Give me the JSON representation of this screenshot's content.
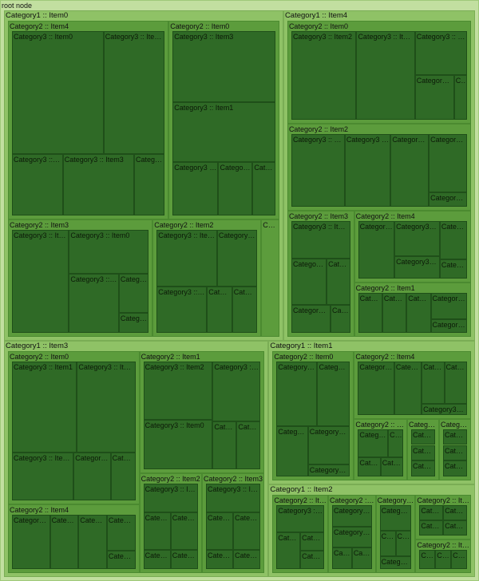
{
  "chart_data": {
    "type": "treemap",
    "title": "",
    "root": {
      "label": "root node",
      "children": [
        {
          "label": "Category1 :: Item0",
          "children": [
            {
              "label": "Category2 :: Item4",
              "children": [
                {
                  "label": "Category3 :: Item0",
                  "value": 18
                },
                {
                  "label": "Category3 :: Item1",
                  "value": 12
                },
                {
                  "label": "Category3 :: Item2",
                  "value": 5
                },
                {
                  "label": "Category3 :: Item3",
                  "value": 7
                },
                {
                  "label": "Category3 :: Item2",
                  "value": 3
                }
              ]
            },
            {
              "label": "Category2 :: Item0",
              "children": [
                {
                  "label": "Category3 :: Item3",
                  "value": 12
                },
                {
                  "label": "Category3 :: Item1",
                  "value": 10
                },
                {
                  "label": "Category3 :: Item4",
                  "value": 4
                },
                {
                  "label": "Category3 :: Item0",
                  "value": 3
                },
                {
                  "label": "Category3 :: Item2",
                  "value": 2
                }
              ]
            },
            {
              "label": "Category2 :: Item3",
              "children": [
                {
                  "label": "Category3 :: Item1",
                  "value": 10
                },
                {
                  "label": "Category3 :: Item0",
                  "value": 6
                },
                {
                  "label": "Category3 :: Item4",
                  "value": 5
                },
                {
                  "label": "Category3 :: Item2",
                  "value": 2
                },
                {
                  "label": "Category3 :: Item3",
                  "value": 1
                }
              ]
            },
            {
              "label": "Category2 :: Item2",
              "children": [
                {
                  "label": "Category3 :: Item2",
                  "value": 6
                },
                {
                  "label": "Category3 :: Item4",
                  "value": 4
                },
                {
                  "label": "Category3 :: Item3",
                  "value": 4
                },
                {
                  "label": "Category3 :: Item1",
                  "value": 2
                },
                {
                  "label": "Category3 :: Item0",
                  "value": 2
                }
              ]
            },
            {
              "label": "Category2 :: Item1",
              "value": 3
            }
          ]
        },
        {
          "label": "Category1 :: Item4",
          "children": [
            {
              "label": "Category2 :: Item0",
              "children": [
                {
                  "label": "Category3 :: Item2",
                  "value": 10
                },
                {
                  "label": "Category3 :: Item4",
                  "value": 9
                },
                {
                  "label": "Category3 :: Item0",
                  "value": 4
                },
                {
                  "label": "Category3 :: Item1",
                  "value": 3
                },
                {
                  "label": "Category3 :: Item3",
                  "value": 1
                }
              ]
            },
            {
              "label": "Category2 :: Item2",
              "children": [
                {
                  "label": "Category3 :: Item0",
                  "value": 7
                },
                {
                  "label": "Category3 :: Item3",
                  "value": 6
                },
                {
                  "label": "Category3 :: Item1",
                  "value": 5
                },
                {
                  "label": "Category3 :: Item2",
                  "value": 4
                },
                {
                  "label": "Category3 :: Item4",
                  "value": 1
                }
              ]
            },
            {
              "label": "Category2 :: Item3",
              "children": [
                {
                  "label": "Category3 :: Item0",
                  "value": 4
                },
                {
                  "label": "Category3 :: Item1",
                  "value": 3
                },
                {
                  "label": "Category3 :: Item2",
                  "value": 2
                },
                {
                  "label": "Category3 :: Item3",
                  "value": 2
                },
                {
                  "label": "Category3 :: Item4",
                  "value": 1
                }
              ]
            },
            {
              "label": "Category2 :: Item4",
              "children": [
                {
                  "label": "Category3 :: Item0",
                  "value": 4
                },
                {
                  "label": "Category3 :: Item1",
                  "value": 3
                },
                {
                  "label": "Category3 :: Item2",
                  "value": 2
                },
                {
                  "label": "Category3 :: Item3",
                  "value": 2
                },
                {
                  "label": "Category3 :: Item4",
                  "value": 1
                }
              ]
            },
            {
              "label": "Category2 :: Item1",
              "children": [
                {
                  "label": "Category3 :: Item0",
                  "value": 2
                },
                {
                  "label": "Category3 :: Item1",
                  "value": 2
                },
                {
                  "label": "Category3 :: Item2",
                  "value": 2
                },
                {
                  "label": "Category3 :: Item3",
                  "value": 2
                },
                {
                  "label": "Category3 :: Item4",
                  "value": 1
                }
              ]
            }
          ]
        },
        {
          "label": "Category1 :: Item3",
          "children": [
            {
              "label": "Category2 :: Item0",
              "children": [
                {
                  "label": "Category3 :: Item1",
                  "value": 10
                },
                {
                  "label": "Category3 :: Item3",
                  "value": 9
                },
                {
                  "label": "Category3 :: Item0",
                  "value": 5
                },
                {
                  "label": "Category3 :: Item2",
                  "value": 3
                },
                {
                  "label": "Category3 :: Item4",
                  "value": 2
                }
              ]
            },
            {
              "label": "Category2 :: Item4",
              "children": [
                {
                  "label": "Category3 :: Item0",
                  "value": 4
                },
                {
                  "label": "Category3 :: Item1",
                  "value": 3
                },
                {
                  "label": "Category3 :: Item2",
                  "value": 3
                },
                {
                  "label": "Category3 :: Item3",
                  "value": 2
                },
                {
                  "label": "Category3 :: Item4",
                  "value": 1
                }
              ]
            },
            {
              "label": "Category2 :: Item1",
              "children": [
                {
                  "label": "Category3 :: Item2",
                  "value": 7
                },
                {
                  "label": "Category3 :: Item0",
                  "value": 6
                },
                {
                  "label": "Category3 :: Item4",
                  "value": 5
                },
                {
                  "label": "Category3 :: Item1",
                  "value": 2
                },
                {
                  "label": "Category3 :: Item3",
                  "value": 2
                }
              ]
            },
            {
              "label": "Category2 :: Item2",
              "children": [
                {
                  "label": "Category3 :: Item0",
                  "value": 3
                },
                {
                  "label": "Category3 :: Item1",
                  "value": 2
                },
                {
                  "label": "Category3 :: Item2",
                  "value": 2
                },
                {
                  "label": "Category3 :: Item3",
                  "value": 1
                },
                {
                  "label": "Category3 :: Item4",
                  "value": 1
                }
              ]
            },
            {
              "label": "Category2 :: Item3",
              "children": [
                {
                  "label": "Category3 :: Item0",
                  "value": 3
                },
                {
                  "label": "Category3 :: Item1",
                  "value": 2
                },
                {
                  "label": "Category3 :: Item2",
                  "value": 2
                },
                {
                  "label": "Category3 :: Item3",
                  "value": 1
                },
                {
                  "label": "Category3 :: Item4",
                  "value": 1
                }
              ]
            }
          ]
        },
        {
          "label": "Category1 :: Item1",
          "children": [
            {
              "label": "Category2 :: Item0",
              "children": [
                {
                  "label": "Category3 :: Item0",
                  "value": 5
                },
                {
                  "label": "Category3 :: Item1",
                  "value": 4
                },
                {
                  "label": "Category3 :: Item2",
                  "value": 3
                },
                {
                  "label": "Category3 :: Item3",
                  "value": 3
                },
                {
                  "label": "Category3 :: Item4",
                  "value": 1
                }
              ]
            },
            {
              "label": "Category2 :: Item4",
              "children": [
                {
                  "label": "Category3 :: Item0",
                  "value": 4
                },
                {
                  "label": "Category3 :: Item1",
                  "value": 3
                },
                {
                  "label": "Category3 :: Item2",
                  "value": 2
                },
                {
                  "label": "Category3 :: Item3",
                  "value": 2
                },
                {
                  "label": "Category3 :: Item4",
                  "value": 1
                }
              ]
            },
            {
              "label": "Category2 :: Item2",
              "children": [
                {
                  "label": "Category3 :: Item0",
                  "value": 2
                },
                {
                  "label": "Category3 :: Item1",
                  "value": 1
                },
                {
                  "label": "Category3 :: Item2",
                  "value": 1
                },
                {
                  "label": "Category3 :: Item3",
                  "value": 1
                }
              ]
            },
            {
              "label": "Category2 :: Item3",
              "children": [
                {
                  "label": "Category3 :: Item0",
                  "value": 1
                },
                {
                  "label": "Category3 :: Item1",
                  "value": 1
                },
                {
                  "label": "Category3 :: Item2",
                  "value": 1
                }
              ]
            },
            {
              "label": "Category2 :: Item1",
              "children": [
                {
                  "label": "Category3 :: Item0",
                  "value": 1
                },
                {
                  "label": "Category3 :: Item1",
                  "value": 1
                },
                {
                  "label": "Category3 :: Item2",
                  "value": 1
                }
              ]
            }
          ]
        },
        {
          "label": "Category1 :: Item2",
          "children": [
            {
              "label": "Category2 :: Item1",
              "children": [
                {
                  "label": "Category3 :: Item0",
                  "value": 3
                },
                {
                  "label": "Category3 :: Item1",
                  "value": 2
                },
                {
                  "label": "Category3 :: Item2",
                  "value": 1
                },
                {
                  "label": "Category3 :: Item3",
                  "value": 1
                }
              ]
            },
            {
              "label": "Category2 :: Item2",
              "children": [
                {
                  "label": "Category3 :: Item0",
                  "value": 2
                },
                {
                  "label": "Category3 :: Item1",
                  "value": 2
                },
                {
                  "label": "Category3 :: Item2",
                  "value": 1
                },
                {
                  "label": "Category3 :: Item3",
                  "value": 1
                }
              ]
            },
            {
              "label": "Category2 :: Item3",
              "children": [
                {
                  "label": "Category3 :: Item0",
                  "value": 2
                },
                {
                  "label": "Category3 :: Item1",
                  "value": 1
                },
                {
                  "label": "Category3 :: Item2",
                  "value": 1
                },
                {
                  "label": "Category3 :: Item3",
                  "value": 1
                }
              ]
            },
            {
              "label": "Category2 :: Item0",
              "children": [
                {
                  "label": "Category3 :: Item0",
                  "value": 1
                },
                {
                  "label": "Category3 :: Item1",
                  "value": 1
                },
                {
                  "label": "Category3 :: Item2",
                  "value": 1
                },
                {
                  "label": "Category3 :: Item3",
                  "value": 1
                }
              ]
            },
            {
              "label": "Category2 :: Item4",
              "children": [
                {
                  "label": "Category3 :: Item0",
                  "value": 1
                },
                {
                  "label": "Category3 :: Item1",
                  "value": 1
                },
                {
                  "label": "Category3 :: Item2",
                  "value": 1
                }
              ]
            }
          ]
        }
      ]
    }
  },
  "colors": {
    "root": "#c2dfa0",
    "level1": "#8fc266",
    "level2": "#5c9c3c",
    "leaf": "#2f6a26"
  }
}
